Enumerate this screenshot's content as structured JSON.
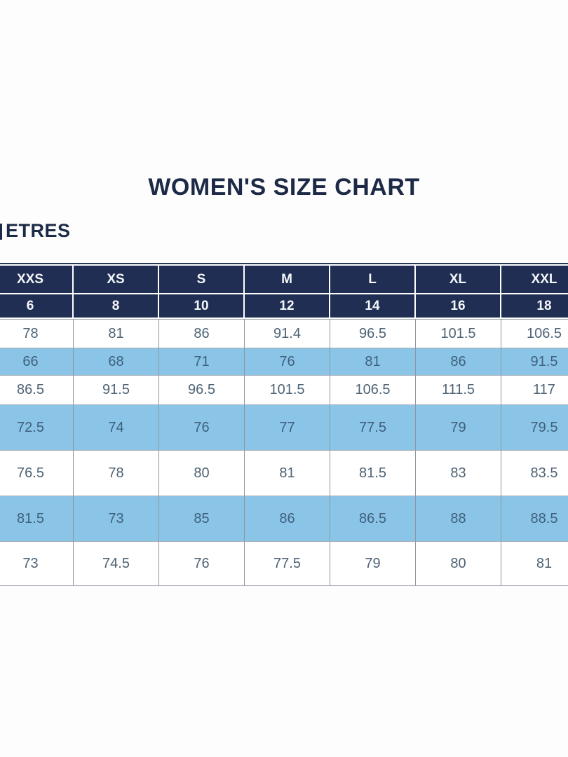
{
  "page": {
    "unit_label": "ETRES"
  },
  "chart_data": {
    "type": "table",
    "title": "WOMEN'S SIZE CHART",
    "unit_label_visible": "ETRES",
    "columns_sizes": [
      "XXS",
      "XS",
      "S",
      "M",
      "L",
      "XL",
      "XXL"
    ],
    "columns_numeric": [
      "6",
      "8",
      "10",
      "12",
      "14",
      "16",
      "18"
    ],
    "rows": [
      {
        "highlight": false,
        "values": [
          "78",
          "81",
          "86",
          "91.4",
          "96.5",
          "101.5",
          "106.5"
        ]
      },
      {
        "highlight": true,
        "values": [
          "66",
          "68",
          "71",
          "76",
          "81",
          "86",
          "91.5"
        ]
      },
      {
        "highlight": false,
        "values": [
          "86.5",
          "91.5",
          "96.5",
          "101.5",
          "106.5",
          "111.5",
          "117"
        ]
      },
      {
        "highlight": true,
        "values": [
          "72.5",
          "74",
          "76",
          "77",
          "77.5",
          "79",
          "79.5"
        ]
      },
      {
        "highlight": false,
        "values": [
          "76.5",
          "78",
          "80",
          "81",
          "81.5",
          "83",
          "83.5"
        ]
      },
      {
        "highlight": true,
        "values": [
          "81.5",
          "73",
          "85",
          "86",
          "86.5",
          "88",
          "88.5"
        ]
      },
      {
        "highlight": false,
        "values": [
          "73",
          "74.5",
          "76",
          "77.5",
          "79",
          "80",
          "81"
        ]
      }
    ],
    "layout": {
      "table_clipped_left": true,
      "table_clipped_right": true,
      "grid": true
    },
    "colors": {
      "header_bg": "#1f2e52",
      "header_text": "#f4f6f9",
      "highlight_row_bg": "#8ac5e8",
      "data_text": "#4e6375",
      "title_text": "#1d2a47",
      "grid_line": "#8e959f"
    }
  }
}
